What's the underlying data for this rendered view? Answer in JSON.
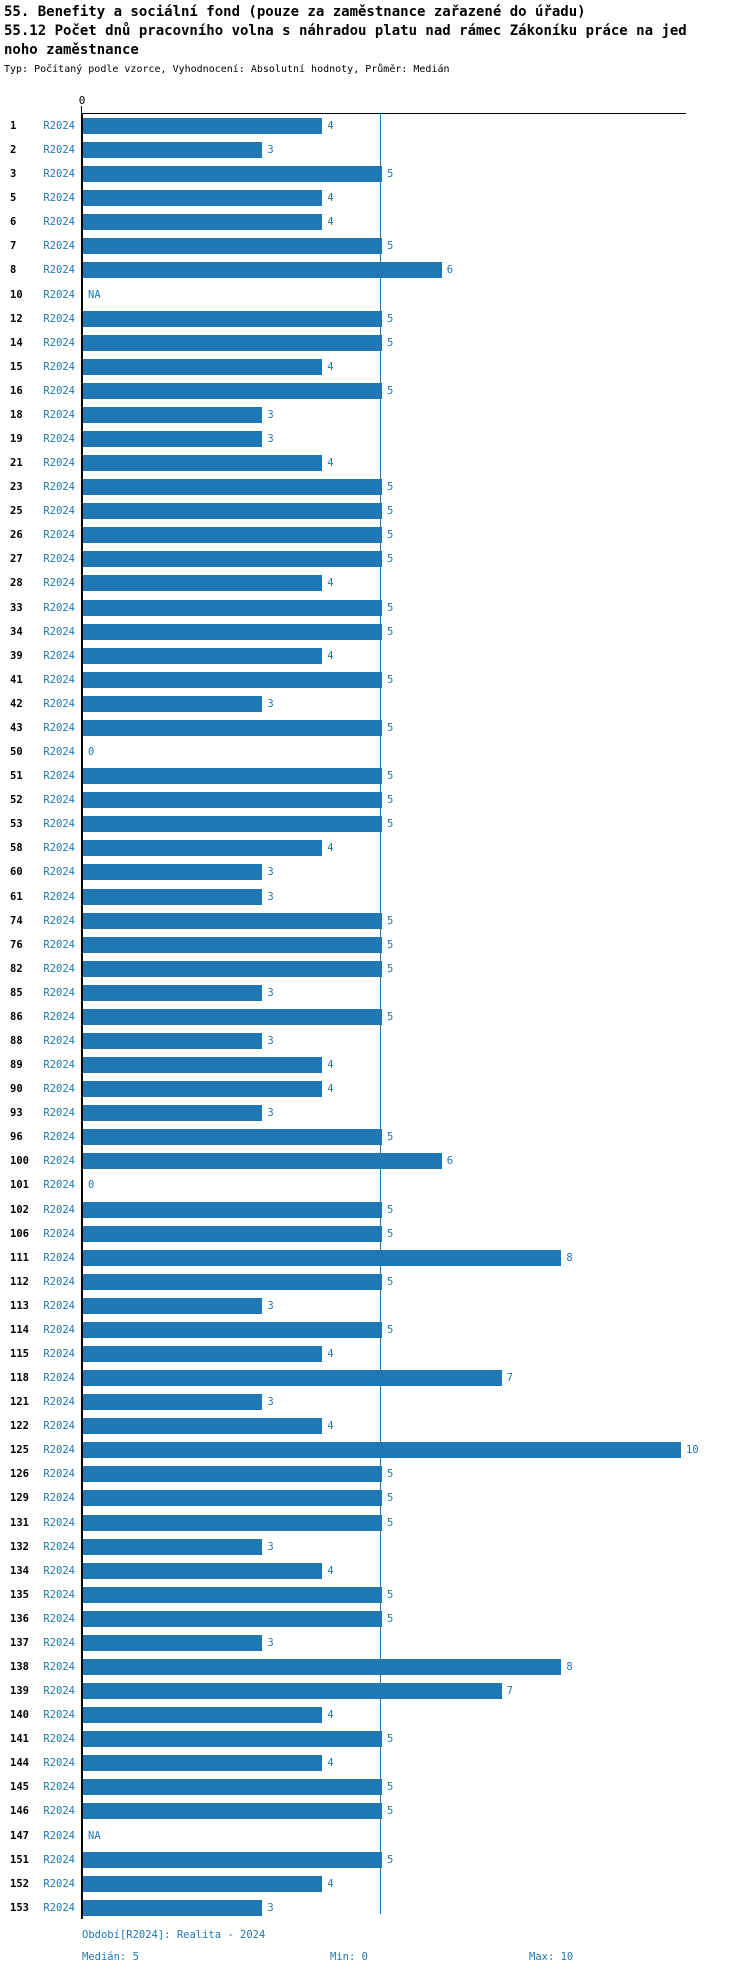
{
  "header": {
    "title_line1": "55. Benefity a sociální fond (pouze za zaměstnance zařazené do úřadu)",
    "title_line2": "55.12 Počet dnů pracovního volna s náhradou platu nad rámec Zákoníku práce na jed",
    "title_line3": "noho zaměstnance",
    "subtitle": "Typ: Počítaný podle vzorce, Vyhodnocení: Absolutní hodnoty, Průměr: Medián"
  },
  "axis": {
    "zero_label": "0"
  },
  "legend": {
    "period": "Období[R2024]: Realita - 2024",
    "median": "Medián: 5",
    "min": "Min: 0",
    "max": "Max: 10"
  },
  "colors": {
    "bar": "#1f77b4",
    "accent_text": "#1f77b4"
  },
  "chart_data": {
    "type": "bar",
    "orientation": "horizontal",
    "title": "55. Benefity a sociální fond (pouze za zaměstnance zařazené do úřadu)",
    "subtitle": "55.12 Počet dnů pracovního volna s náhradou platu nad rámec Zákoníku práce na jednoho zaměstnance",
    "meta": "Typ: Počítaný podle vzorce, Vyhodnocení: Absolutní hodnoty, Průměr: Medián",
    "series_label": "R2024",
    "xlim": [
      0,
      10
    ],
    "grid": false,
    "median": 5,
    "min": 0,
    "max": 10,
    "na_label": "NA",
    "categories": [
      "1",
      "2",
      "3",
      "5",
      "6",
      "7",
      "8",
      "10",
      "12",
      "14",
      "15",
      "16",
      "18",
      "19",
      "21",
      "23",
      "25",
      "26",
      "27",
      "28",
      "33",
      "34",
      "39",
      "41",
      "42",
      "43",
      "50",
      "51",
      "52",
      "53",
      "58",
      "60",
      "61",
      "74",
      "76",
      "82",
      "85",
      "86",
      "88",
      "89",
      "90",
      "93",
      "96",
      "100",
      "101",
      "102",
      "106",
      "111",
      "112",
      "113",
      "114",
      "115",
      "118",
      "121",
      "122",
      "125",
      "126",
      "129",
      "131",
      "132",
      "134",
      "135",
      "136",
      "137",
      "138",
      "139",
      "140",
      "141",
      "144",
      "145",
      "146",
      "147",
      "151",
      "152",
      "153"
    ],
    "values": [
      4,
      3,
      5,
      4,
      4,
      5,
      6,
      "NA",
      5,
      5,
      4,
      5,
      3,
      3,
      4,
      5,
      5,
      5,
      5,
      4,
      5,
      5,
      4,
      5,
      3,
      5,
      0,
      5,
      5,
      5,
      4,
      3,
      3,
      5,
      5,
      5,
      3,
      5,
      3,
      4,
      4,
      3,
      5,
      6,
      0,
      5,
      5,
      8,
      5,
      3,
      5,
      4,
      7,
      3,
      4,
      10,
      5,
      5,
      5,
      3,
      4,
      5,
      5,
      3,
      8,
      7,
      4,
      5,
      4,
      5,
      5,
      "NA",
      5,
      4,
      3
    ]
  }
}
